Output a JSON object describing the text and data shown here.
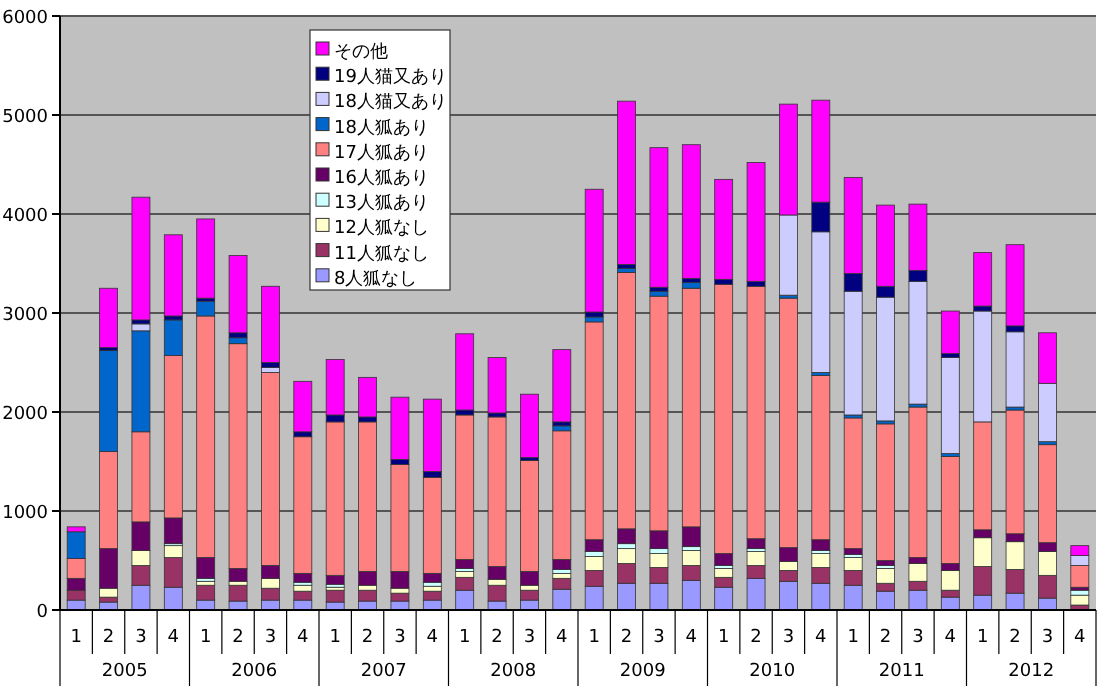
{
  "chart_data": {
    "type": "bar",
    "stacked": true,
    "categories": [
      "1",
      "2",
      "3",
      "4",
      "1",
      "2",
      "3",
      "4",
      "1",
      "2",
      "3",
      "4",
      "1",
      "2",
      "3",
      "4",
      "1",
      "2",
      "3",
      "4",
      "1",
      "2",
      "3",
      "4",
      "1",
      "2",
      "3",
      "4",
      "1",
      "2",
      "3",
      "4"
    ],
    "annotations": [
      "2005",
      "2006",
      "2007",
      "2008",
      "2009",
      "2010",
      "2011",
      "2012"
    ],
    "ylim": [
      0,
      6000
    ],
    "yticks": [
      0,
      1000,
      2000,
      3000,
      4000,
      5000,
      6000
    ],
    "grid": "y",
    "legend": "top left",
    "series": [
      {
        "name": "8人狐なし",
        "color": "#9999ff",
        "values": [
          100,
          80,
          250,
          230,
          100,
          90,
          100,
          100,
          80,
          90,
          90,
          100,
          200,
          90,
          100,
          210,
          240,
          270,
          270,
          300,
          230,
          320,
          290,
          270,
          250,
          190,
          200,
          130,
          150,
          170,
          120,
          0
        ]
      },
      {
        "name": "11人狐なし",
        "color": "#993366",
        "values": [
          100,
          50,
          200,
          300,
          150,
          160,
          120,
          90,
          120,
          110,
          80,
          90,
          130,
          160,
          100,
          110,
          160,
          200,
          160,
          150,
          100,
          130,
          110,
          160,
          150,
          80,
          90,
          70,
          290,
          240,
          230,
          50
        ]
      },
      {
        "name": "12人狐なし",
        "color": "#ffffcc",
        "values": [
          0,
          90,
          150,
          120,
          40,
          40,
          100,
          60,
          30,
          50,
          50,
          50,
          60,
          60,
          50,
          50,
          140,
          150,
          140,
          150,
          90,
          140,
          90,
          140,
          130,
          150,
          180,
          200,
          290,
          280,
          240,
          100
        ]
      },
      {
        "name": "13人狐あり",
        "color": "#ccffff",
        "values": [
          0,
          0,
          0,
          20,
          30,
          0,
          0,
          30,
          30,
          0,
          0,
          40,
          30,
          0,
          0,
          40,
          50,
          50,
          50,
          40,
          30,
          30,
          0,
          30,
          30,
          30,
          0,
          0,
          0,
          0,
          0,
          50
        ]
      },
      {
        "name": "16人狐あり",
        "color": "#660066",
        "values": [
          120,
          400,
          290,
          260,
          210,
          130,
          130,
          90,
          90,
          140,
          170,
          90,
          90,
          130,
          140,
          100,
          120,
          150,
          180,
          200,
          120,
          100,
          140,
          110,
          60,
          50,
          60,
          70,
          80,
          80,
          90,
          30
        ]
      },
      {
        "name": "17人狐あり",
        "color": "#ff8080",
        "values": [
          200,
          980,
          910,
          1640,
          2440,
          2270,
          1950,
          1380,
          1550,
          1510,
          1080,
          970,
          1460,
          1510,
          1120,
          1300,
          2200,
          2590,
          2370,
          2410,
          2720,
          2550,
          2520,
          1660,
          1320,
          1380,
          1520,
          1080,
          1090,
          1250,
          990,
          220
        ]
      },
      {
        "name": "18人狐あり",
        "color": "#0066cc",
        "values": [
          270,
          1020,
          1020,
          360,
          150,
          60,
          0,
          0,
          0,
          0,
          0,
          0,
          0,
          0,
          0,
          50,
          50,
          40,
          50,
          60,
          0,
          0,
          30,
          30,
          30,
          30,
          30,
          30,
          0,
          30,
          30,
          0
        ]
      },
      {
        "name": "18人猫又あり",
        "color": "#ccccff",
        "values": [
          0,
          0,
          70,
          0,
          0,
          0,
          50,
          0,
          0,
          0,
          0,
          0,
          0,
          0,
          0,
          0,
          0,
          0,
          0,
          0,
          0,
          0,
          810,
          1420,
          1250,
          1250,
          1240,
          970,
          1120,
          760,
          590,
          100
        ]
      },
      {
        "name": "19人猫又あり",
        "color": "#000080",
        "values": [
          0,
          30,
          40,
          40,
          30,
          50,
          50,
          50,
          70,
          50,
          50,
          60,
          50,
          40,
          30,
          40,
          50,
          40,
          40,
          40,
          50,
          50,
          0,
          300,
          180,
          110,
          110,
          40,
          50,
          60,
          0,
          0
        ]
      },
      {
        "name": "その他",
        "color": "#ff00ff",
        "values": [
          50,
          600,
          1240,
          820,
          800,
          780,
          770,
          510,
          560,
          400,
          630,
          730,
          770,
          560,
          640,
          730,
          1240,
          1650,
          1410,
          1350,
          1010,
          1200,
          1120,
          1030,
          970,
          820,
          670,
          430,
          540,
          820,
          510,
          100
        ]
      }
    ]
  }
}
